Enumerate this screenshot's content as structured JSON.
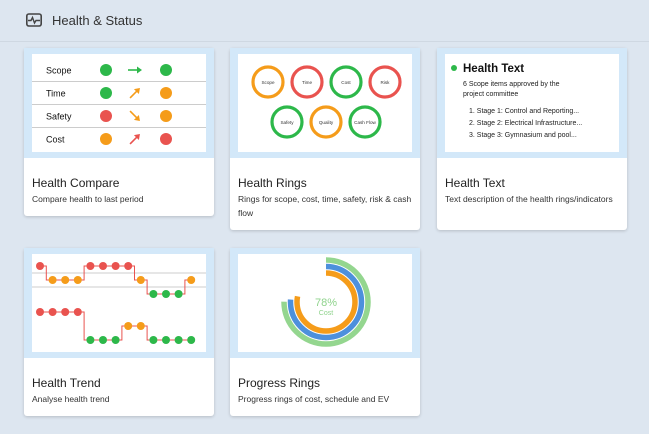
{
  "header": {
    "title": "Health & Status",
    "icon": "pulse-icon"
  },
  "colors": {
    "green": "#2db84a",
    "orange": "#f59c1a",
    "red": "#e9534f",
    "blue": "#4d90dc",
    "light_green": "#94d68f",
    "preview_bg": "#d3e8f9"
  },
  "cards": [
    {
      "id": "health-compare",
      "title": "Health Compare",
      "description": "Compare health to last period",
      "preview": {
        "rows": [
          {
            "label": "Scope",
            "previous": "green",
            "trend": "right",
            "current": "green"
          },
          {
            "label": "Time",
            "previous": "green",
            "trend": "up-right",
            "current": "orange"
          },
          {
            "label": "Safety",
            "previous": "red",
            "trend": "down-right",
            "current": "orange"
          },
          {
            "label": "Cost",
            "previous": "orange",
            "trend": "up-right",
            "current": "red"
          }
        ]
      }
    },
    {
      "id": "health-rings",
      "title": "Health Rings",
      "description": "Rings for scope, cost, time, safety, risk & cash flow",
      "preview": {
        "rings": [
          {
            "label": "Scope",
            "color": "orange"
          },
          {
            "label": "Time",
            "color": "red"
          },
          {
            "label": "Cost",
            "color": "green"
          },
          {
            "label": "Risk",
            "color": "red"
          },
          {
            "label": "Safety",
            "color": "green"
          },
          {
            "label": "Quality",
            "color": "orange"
          },
          {
            "label": "Cash Flow",
            "color": "green"
          }
        ]
      }
    },
    {
      "id": "health-text",
      "title": "Health Text",
      "description": "Text description of the health rings/indicators",
      "preview": {
        "heading": "Health Text",
        "summary": "6 Scope items approved by the project committee",
        "items": [
          "1. Stage 1: Control and Reporting...",
          "2. Stage 2: Electrical Infrastructure...",
          "3. Stage 3: Gymnasium and pool..."
        ]
      }
    },
    {
      "id": "health-trend",
      "title": "Health Trend",
      "description": "Analyse health trend",
      "preview": {
        "trend_a": [
          "red",
          "orange",
          "orange",
          "orange",
          "red",
          "red",
          "red",
          "red",
          "orange",
          "green",
          "green",
          "green",
          "orange"
        ],
        "trend_b": [
          "red",
          "red",
          "red",
          "red",
          "green",
          "green",
          "green",
          "orange",
          "orange",
          "green",
          "green",
          "green",
          "green"
        ]
      }
    },
    {
      "id": "progress-rings",
      "title": "Progress Rings",
      "description": "Progress rings of cost, schedule and EV",
      "preview": {
        "center_value": "78%",
        "center_label": "Cost",
        "rings": [
          {
            "name": "ev",
            "color": "light_green",
            "progress": 0.75
          },
          {
            "name": "schedule",
            "color": "blue",
            "progress": 0.76
          },
          {
            "name": "cost",
            "color": "orange",
            "progress": 0.78
          }
        ]
      }
    }
  ]
}
